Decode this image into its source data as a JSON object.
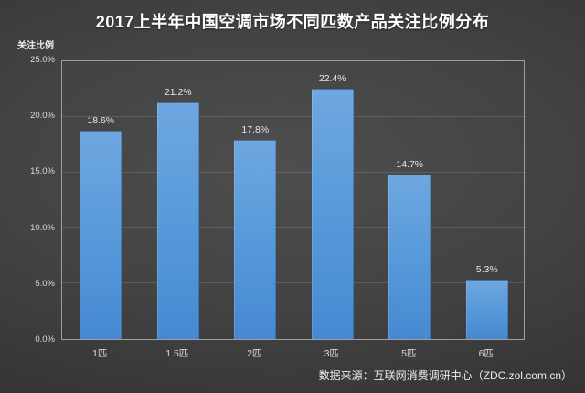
{
  "chart_data": {
    "type": "bar",
    "title": "2017上半年中国空调市场不同匹数产品关注比例分布",
    "ylabel": "关注比例",
    "categories": [
      "1匹",
      "1.5匹",
      "2匹",
      "3匹",
      "5匹",
      "6匹"
    ],
    "values": [
      18.6,
      21.2,
      17.8,
      22.4,
      14.7,
      5.3
    ],
    "value_labels": [
      "18.6%",
      "21.2%",
      "17.8%",
      "22.4%",
      "14.7%",
      "5.3%"
    ],
    "ylim": [
      0,
      25
    ],
    "y_ticks": {
      "values": [
        0,
        5,
        10,
        15,
        20,
        25
      ],
      "labels": [
        "0.0%",
        "5.0%",
        "10.0%",
        "15.0%",
        "20.0%",
        "25.0%"
      ]
    },
    "grid": true,
    "legend": "none",
    "colors": {
      "bar_top": "#6ea7e0",
      "bar_bottom": "#4689d2",
      "frame": "#9e9e9e",
      "title_text": "#ffffff",
      "axis_text": "#d9d9d9",
      "background_center": "#4e4e4e",
      "background_edge": "#262626"
    }
  },
  "footer": {
    "source": "数据来源：互联网消费调研中心（ZDC.zol.com.cn）"
  }
}
